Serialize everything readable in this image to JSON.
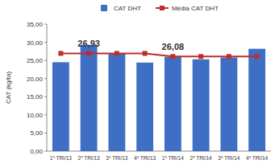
{
  "chart_data": {
    "type": "bar",
    "y_label": "CAT (kg/ta)",
    "categories": [
      "1º TRI/13",
      "2º TRI/13",
      "3º TRI/13",
      "4º TRI/13",
      "1º TRI/14",
      "2º TRI/14",
      "3º TRI/14",
      "4º TRI/14"
    ],
    "series": [
      {
        "name": "CAT DHT",
        "type": "bar",
        "color": "#3f6fc4",
        "values": [
          24.5,
          29.3,
          26.9,
          24.4,
          26.0,
          25.3,
          25.8,
          28.2
        ]
      },
      {
        "name": "Média CAT DHT",
        "type": "line",
        "color": "#be2d2a",
        "marker": "square",
        "values": [
          26.93,
          26.93,
          26.93,
          26.93,
          26.08,
          26.08,
          26.08,
          26.08
        ],
        "value_labels": [
          null,
          "26,93",
          null,
          null,
          "26,08",
          null,
          null,
          null
        ]
      }
    ],
    "ylim": [
      0,
      35
    ],
    "yticks": [
      {
        "value": 0,
        "label": "0,00"
      },
      {
        "value": 5,
        "label": "5,00"
      },
      {
        "value": 10,
        "label": "10,00"
      },
      {
        "value": 15,
        "label": "15,00"
      },
      {
        "value": 20,
        "label": "20,00"
      },
      {
        "value": 25,
        "label": "25,00"
      },
      {
        "value": 30,
        "label": "30,00"
      },
      {
        "value": 35,
        "label": "35,00"
      }
    ],
    "grid": false,
    "legend": "top"
  }
}
